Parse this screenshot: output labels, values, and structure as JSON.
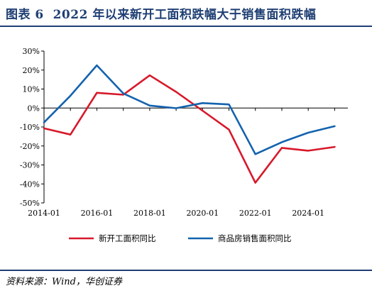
{
  "header": {
    "figure_label": "图表 6",
    "title": "2022 年以来新开工面积跌幅大于销售面积跌幅"
  },
  "source": "资料来源：Wind，华创证券",
  "colors": {
    "series1": "#d7192a",
    "series2": "#1463ae",
    "title": "#1f3f73"
  },
  "chart_data": {
    "type": "line",
    "title": "2022 年以来新开工面积跌幅大于销售面积跌幅",
    "xlabel": "",
    "ylabel": "",
    "x": [
      "2014-01",
      "2015-01",
      "2016-01",
      "2017-01",
      "2018-01",
      "2019-01",
      "2020-01",
      "2021-01",
      "2022-01",
      "2023-01",
      "2024-01",
      "2025-01"
    ],
    "x_tick_labels": [
      "2014-01",
      "2016-01",
      "2018-01",
      "2020-01",
      "2022-01",
      "2024-01"
    ],
    "y_tick_labels": [
      "30%",
      "20%",
      "10%",
      "0%",
      "-10%",
      "-20%",
      "-30%",
      "-40%",
      "-50%"
    ],
    "ylim": [
      -50,
      30
    ],
    "y_unit": "%",
    "legend_position": "bottom",
    "series": [
      {
        "name": "新开工面积同比",
        "color": "#d7192a",
        "x": [
          "2014-01",
          "2015-01",
          "2016-01",
          "2017-01",
          "2018-01",
          "2019-01",
          "2020-01",
          "2021-01",
          "2022-01",
          "2023-01",
          "2024-01",
          "2025-01"
        ],
        "values": [
          -10.7,
          -14,
          8,
          7,
          17.2,
          8.5,
          -1.4,
          -11.4,
          -39.4,
          -21,
          -22.5,
          -20.5
        ]
      },
      {
        "name": "商品房销售面积同比",
        "color": "#1463ae",
        "x": [
          "2014-01",
          "2015-01",
          "2016-01",
          "2017-01",
          "2018-01",
          "2019-01",
          "2020-01",
          "2021-01",
          "2022-01",
          "2023-01",
          "2024-01",
          "2025-01"
        ],
        "values": [
          -7.6,
          6.5,
          22.5,
          7.7,
          1.3,
          -0.1,
          2.6,
          1.9,
          -24.3,
          -18,
          -13,
          -9.6
        ]
      }
    ]
  }
}
